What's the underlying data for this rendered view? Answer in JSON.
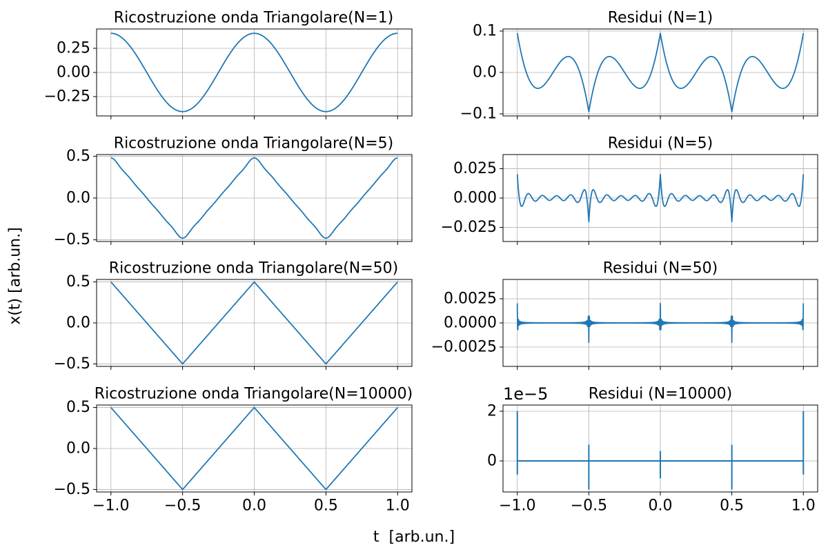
{
  "figure": {
    "xlabel": "t  [arb.un.]",
    "ylabel": "x(t) [arb.un.]"
  },
  "colors": {
    "line": "#1f77b4",
    "grid": "#b0b0b0",
    "axes": "#000000"
  },
  "chart_data": [
    {
      "type": "line",
      "title": "Ricostruzione onda Triangolare(N=1)",
      "function": "triangle_fourier",
      "N": 1,
      "xlim": [
        -1.1,
        1.1
      ],
      "ylim": [
        -0.45,
        0.45
      ],
      "xticks": [
        -1.0,
        -0.5,
        0.0,
        0.5,
        1.0
      ],
      "xticklabels": [],
      "yticks": [
        -0.25,
        0.0,
        0.25
      ],
      "yticklabels": [
        "−0.25",
        "0.00",
        "0.25"
      ],
      "grid": true
    },
    {
      "type": "line",
      "title": "Residui (N=1)",
      "function": "triangle_residual",
      "N": 1,
      "xlim": [
        -1.1,
        1.1
      ],
      "ylim": [
        -0.105,
        0.105
      ],
      "xticks": [
        -1.0,
        -0.5,
        0.0,
        0.5,
        1.0
      ],
      "xticklabels": [],
      "yticks": [
        -0.1,
        0.0,
        0.1
      ],
      "yticklabels": [
        "−0.1",
        "0.0",
        "0.1"
      ],
      "grid": true
    },
    {
      "type": "line",
      "title": "Ricostruzione onda Triangolare(N=5)",
      "function": "triangle_fourier",
      "N": 5,
      "xlim": [
        -1.1,
        1.1
      ],
      "ylim": [
        -0.52,
        0.52
      ],
      "xticks": [
        -1.0,
        -0.5,
        0.0,
        0.5,
        1.0
      ],
      "xticklabels": [],
      "yticks": [
        -0.5,
        0.0,
        0.5
      ],
      "yticklabels": [
        "−0.5",
        "0.0",
        "0.5"
      ],
      "grid": true
    },
    {
      "type": "line",
      "title": "Residui (N=5)",
      "function": "triangle_residual",
      "N": 5,
      "xlim": [
        -1.1,
        1.1
      ],
      "ylim": [
        -0.037,
        0.037
      ],
      "xticks": [
        -1.0,
        -0.5,
        0.0,
        0.5,
        1.0
      ],
      "xticklabels": [],
      "yticks": [
        -0.025,
        0.0,
        0.025
      ],
      "yticklabels": [
        "−0.025",
        "0.000",
        "0.025"
      ],
      "grid": true
    },
    {
      "type": "line",
      "title": "Ricostruzione onda Triangolare(N=50)",
      "function": "triangle_fourier",
      "N": 50,
      "xlim": [
        -1.1,
        1.1
      ],
      "ylim": [
        -0.53,
        0.53
      ],
      "xticks": [
        -1.0,
        -0.5,
        0.0,
        0.5,
        1.0
      ],
      "xticklabels": [],
      "yticks": [
        -0.5,
        0.0,
        0.5
      ],
      "yticklabels": [
        "−0.5",
        "0.0",
        "0.5"
      ],
      "grid": true
    },
    {
      "type": "line",
      "title": "Residui (N=50)",
      "function": "triangle_residual",
      "N": 50,
      "xlim": [
        -1.1,
        1.1
      ],
      "ylim": [
        -0.0045,
        0.0045
      ],
      "xticks": [
        -1.0,
        -0.5,
        0.0,
        0.5,
        1.0
      ],
      "xticklabels": [],
      "yticks": [
        -0.0025,
        0.0,
        0.0025
      ],
      "yticklabels": [
        "−0.0025",
        "0.0000",
        "0.0025"
      ],
      "grid": true
    },
    {
      "type": "line",
      "title": "Ricostruzione onda Triangolare(N=10000)",
      "function": "triangle_fourier",
      "N": 10000,
      "xlim": [
        -1.1,
        1.1
      ],
      "ylim": [
        -0.53,
        0.53
      ],
      "xticks": [
        -1.0,
        -0.5,
        0.0,
        0.5,
        1.0
      ],
      "xticklabels": [
        "−1.0",
        "−0.5",
        "0.0",
        "0.5",
        "1.0"
      ],
      "yticks": [
        -0.5,
        0.0,
        0.5
      ],
      "yticklabels": [
        "−0.5",
        "0.0",
        "0.5"
      ],
      "grid": true
    },
    {
      "type": "line",
      "title": "Residui (N=10000)",
      "function": "spikes",
      "N": 10000,
      "offset_label": "1e−5",
      "spikes": [
        {
          "t": -1.0,
          "y_max": 2.0,
          "y_min": -0.55
        },
        {
          "t": -0.5,
          "y_max": 0.65,
          "y_min": -1.15
        },
        {
          "t": 0.0,
          "y_max": 0.4,
          "y_min": -0.7
        },
        {
          "t": 0.5,
          "y_max": 0.65,
          "y_min": -1.15
        },
        {
          "t": 1.0,
          "y_max": 2.0,
          "y_min": -0.55
        }
      ],
      "xlim": [
        -1.1,
        1.1
      ],
      "ylim": [
        -1.25,
        2.25
      ],
      "xticks": [
        -1.0,
        -0.5,
        0.0,
        0.5,
        1.0
      ],
      "xticklabels": [
        "−1.0",
        "−0.5",
        "0.0",
        "0.5",
        "1.0"
      ],
      "yticks": [
        0,
        2
      ],
      "yticklabels": [
        "0",
        "2"
      ],
      "grid": true
    }
  ]
}
